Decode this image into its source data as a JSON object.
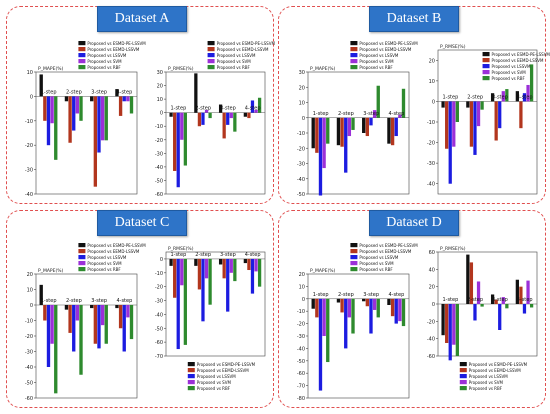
{
  "colors": {
    "esmd_pe_lssvm": "#111111",
    "eemd_lssvm": "#b2361e",
    "lssvm": "#1c1ce0",
    "svm": "#9b30d8",
    "rbf": "#2e8a2e",
    "panel_border": "#e05050",
    "badge": "#2e74c8"
  },
  "panels": [
    {
      "title": "Dataset A",
      "charts": [
        {
          "type": "bar",
          "ylabel": "P_MAPE(%)",
          "ylim": [
            -40,
            10
          ],
          "yticks": [
            10,
            0,
            -10,
            -20,
            -30,
            -40
          ],
          "legend": "top",
          "categories": [
            "1-step",
            "2-step",
            "3-step",
            "4-step"
          ],
          "series": [
            {
              "name": "Proposed vs ESMD-PE-LSSVM",
              "values": [
                9,
                -2,
                -2,
                3
              ]
            },
            {
              "name": "Proposed vs EEMD-LSSVM",
              "values": [
                -10,
                -19,
                -37,
                -8
              ]
            },
            {
              "name": "Proposed vs LSSVM",
              "values": [
                -20,
                -14,
                -23,
                -2
              ]
            },
            {
              "name": "Proposed vs SVM",
              "values": [
                -11,
                -7,
                -18,
                -2
              ]
            },
            {
              "name": "Proposed vs RBF",
              "values": [
                -26,
                -10,
                -18,
                -7
              ]
            }
          ]
        },
        {
          "type": "bar",
          "ylabel": "P_RMSE(%)",
          "ylim": [
            -60,
            30
          ],
          "yticks": [
            30,
            20,
            10,
            0,
            -10,
            -20,
            -30,
            -40,
            -50,
            -60
          ],
          "legend": "top",
          "categories": [
            "1-step",
            "2-step",
            "3-step",
            "4-step"
          ],
          "series": [
            {
              "name": "Proposed vs ESMD-PE-LSSVM",
              "values": [
                -3,
                29,
                6,
                -3
              ]
            },
            {
              "name": "Proposed vs EEMD-LSSVM",
              "values": [
                -43,
                -10,
                -19,
                -4
              ]
            },
            {
              "name": "Proposed vs LSSVM",
              "values": [
                -55,
                -9,
                -9,
                9
              ]
            },
            {
              "name": "Proposed vs SVM",
              "values": [
                -20,
                2,
                -4,
                2
              ]
            },
            {
              "name": "Proposed vs RBF",
              "values": [
                -39,
                -4,
                -14,
                11
              ]
            }
          ]
        }
      ]
    },
    {
      "title": "Dataset B",
      "charts": [
        {
          "type": "bar",
          "ylabel": "P_MAPE(%)",
          "ylim": [
            -50,
            30
          ],
          "yticks": [
            30,
            20,
            10,
            0,
            -10,
            -20,
            -30,
            -40,
            -50
          ],
          "legend": "top",
          "categories": [
            "1-step",
            "2-step",
            "3-step",
            "4-step"
          ],
          "series": [
            {
              "name": "Proposed vs ESMD-PE-LSSVM",
              "values": [
                -20,
                -18,
                -10,
                -17
              ]
            },
            {
              "name": "Proposed vs EEMD-LSSVM",
              "values": [
                -23,
                -19,
                -12,
                -18
              ]
            },
            {
              "name": "Proposed vs LSSVM",
              "values": [
                -51,
                -36,
                -5,
                -12
              ]
            },
            {
              "name": "Proposed vs SVM",
              "values": [
                -33,
                -12,
                5,
                2
              ]
            },
            {
              "name": "Proposed vs RBF",
              "values": [
                -17,
                -8,
                21,
                19
              ]
            }
          ]
        },
        {
          "type": "bar",
          "ylabel": "P_RMSE(%)",
          "ylim": [
            -45,
            25
          ],
          "yticks": [
            20,
            10,
            0,
            -10,
            -20,
            -30,
            -40
          ],
          "legend": "top-right",
          "categories": [
            "1-step",
            "2-step",
            "3-step",
            "4-step"
          ],
          "series": [
            {
              "name": "Proposed vs ESMD-PE-LSSVM",
              "values": [
                -3,
                -3,
                4,
                5
              ]
            },
            {
              "name": "Proposed vs EEMD-LSSVM",
              "values": [
                -23,
                -22,
                -19,
                -13
              ]
            },
            {
              "name": "Proposed vs LSSVM",
              "values": [
                -40,
                -26,
                -13,
                4
              ]
            },
            {
              "name": "Proposed vs SVM",
              "values": [
                -22,
                -12,
                5,
                8
              ]
            },
            {
              "name": "Proposed vs RBF",
              "values": [
                -10,
                -4,
                6,
                18
              ]
            }
          ]
        }
      ]
    },
    {
      "title": "Dataset C",
      "charts": [
        {
          "type": "bar",
          "ylabel": "P_MAPE(%)",
          "ylim": [
            -60,
            20
          ],
          "yticks": [
            20,
            10,
            0,
            -10,
            -20,
            -30,
            -40,
            -50,
            -60
          ],
          "legend": "top",
          "categories": [
            "1-step",
            "2-step",
            "3-step",
            "4-step"
          ],
          "series": [
            {
              "name": "Proposed vs ESMD-PE-LSSVM",
              "values": [
                13,
                -3,
                -2,
                -2
              ]
            },
            {
              "name": "Proposed vs EEMD-LSSVM",
              "values": [
                -10,
                -18,
                -25,
                -15
              ]
            },
            {
              "name": "Proposed vs LSSVM",
              "values": [
                -40,
                -30,
                -28,
                -30
              ]
            },
            {
              "name": "Proposed vs SVM",
              "values": [
                -25,
                -10,
                -13,
                -8
              ]
            },
            {
              "name": "Proposed vs RBF",
              "values": [
                -57,
                -45,
                -25,
                -22
              ]
            }
          ]
        },
        {
          "type": "bar",
          "ylabel": "P_RMSE(%)",
          "ylim": [
            -70,
            5
          ],
          "yticks": [
            0,
            -10,
            -20,
            -30,
            -40,
            -50,
            -60,
            -70
          ],
          "legend": "bottom",
          "categories": [
            "1-step",
            "2-step",
            "3-step",
            "4-step"
          ],
          "series": [
            {
              "name": "Proposed vs ESMD-PE-LSSVM",
              "values": [
                -5,
                -5,
                -4,
                -3
              ]
            },
            {
              "name": "Proposed vs EEMD-LSSVM",
              "values": [
                -28,
                -22,
                -14,
                -8
              ]
            },
            {
              "name": "Proposed vs LSSVM",
              "values": [
                -65,
                -45,
                -38,
                -25
              ]
            },
            {
              "name": "Proposed vs SVM",
              "values": [
                -19,
                -14,
                -10,
                -9
              ]
            },
            {
              "name": "Proposed vs RBF",
              "values": [
                -62,
                -33,
                -16,
                -20
              ]
            }
          ]
        }
      ]
    },
    {
      "title": "Dataset D",
      "charts": [
        {
          "type": "bar",
          "ylabel": "P_MAPE(%)",
          "ylim": [
            -80,
            20
          ],
          "yticks": [
            20,
            10,
            0,
            -10,
            -20,
            -30,
            -40,
            -50,
            -60,
            -70,
            -80
          ],
          "legend": "top",
          "categories": [
            "1-step",
            "2-step",
            "3-step",
            "4-step"
          ],
          "series": [
            {
              "name": "Proposed vs ESMD-PE-LSSVM",
              "values": [
                -8,
                -3,
                -2,
                -5
              ]
            },
            {
              "name": "Proposed vs EEMD-LSSVM",
              "values": [
                -15,
                -11,
                -6,
                -14
              ]
            },
            {
              "name": "Proposed vs LSSVM",
              "values": [
                -74,
                -40,
                -28,
                -20
              ]
            },
            {
              "name": "Proposed vs SVM",
              "values": [
                -30,
                -15,
                -9,
                -18
              ]
            },
            {
              "name": "Proposed vs RBF",
              "values": [
                -51,
                -28,
                -15,
                -22
              ]
            }
          ]
        },
        {
          "type": "bar",
          "ylabel": "P_RMSE(%)",
          "ylim": [
            -60,
            60
          ],
          "yticks": [
            60,
            40,
            20,
            0,
            -20,
            -40,
            -60
          ],
          "legend": "bottom",
          "categories": [
            "1-step",
            "2-step",
            "3-step",
            "4-step"
          ],
          "series": [
            {
              "name": "Proposed vs ESMD-PE-LSSVM",
              "values": [
                -36,
                57,
                11,
                28
              ]
            },
            {
              "name": "Proposed vs EEMD-LSSVM",
              "values": [
                -45,
                48,
                5,
                20
              ]
            },
            {
              "name": "Proposed vs LSSVM",
              "values": [
                -65,
                -19,
                -30,
                -11
              ]
            },
            {
              "name": "Proposed vs SVM",
              "values": [
                -47,
                26,
                8,
                27
              ]
            },
            {
              "name": "Proposed vs RBF",
              "values": [
                -60,
                -3,
                -5,
                -4
              ]
            }
          ]
        }
      ]
    }
  ]
}
